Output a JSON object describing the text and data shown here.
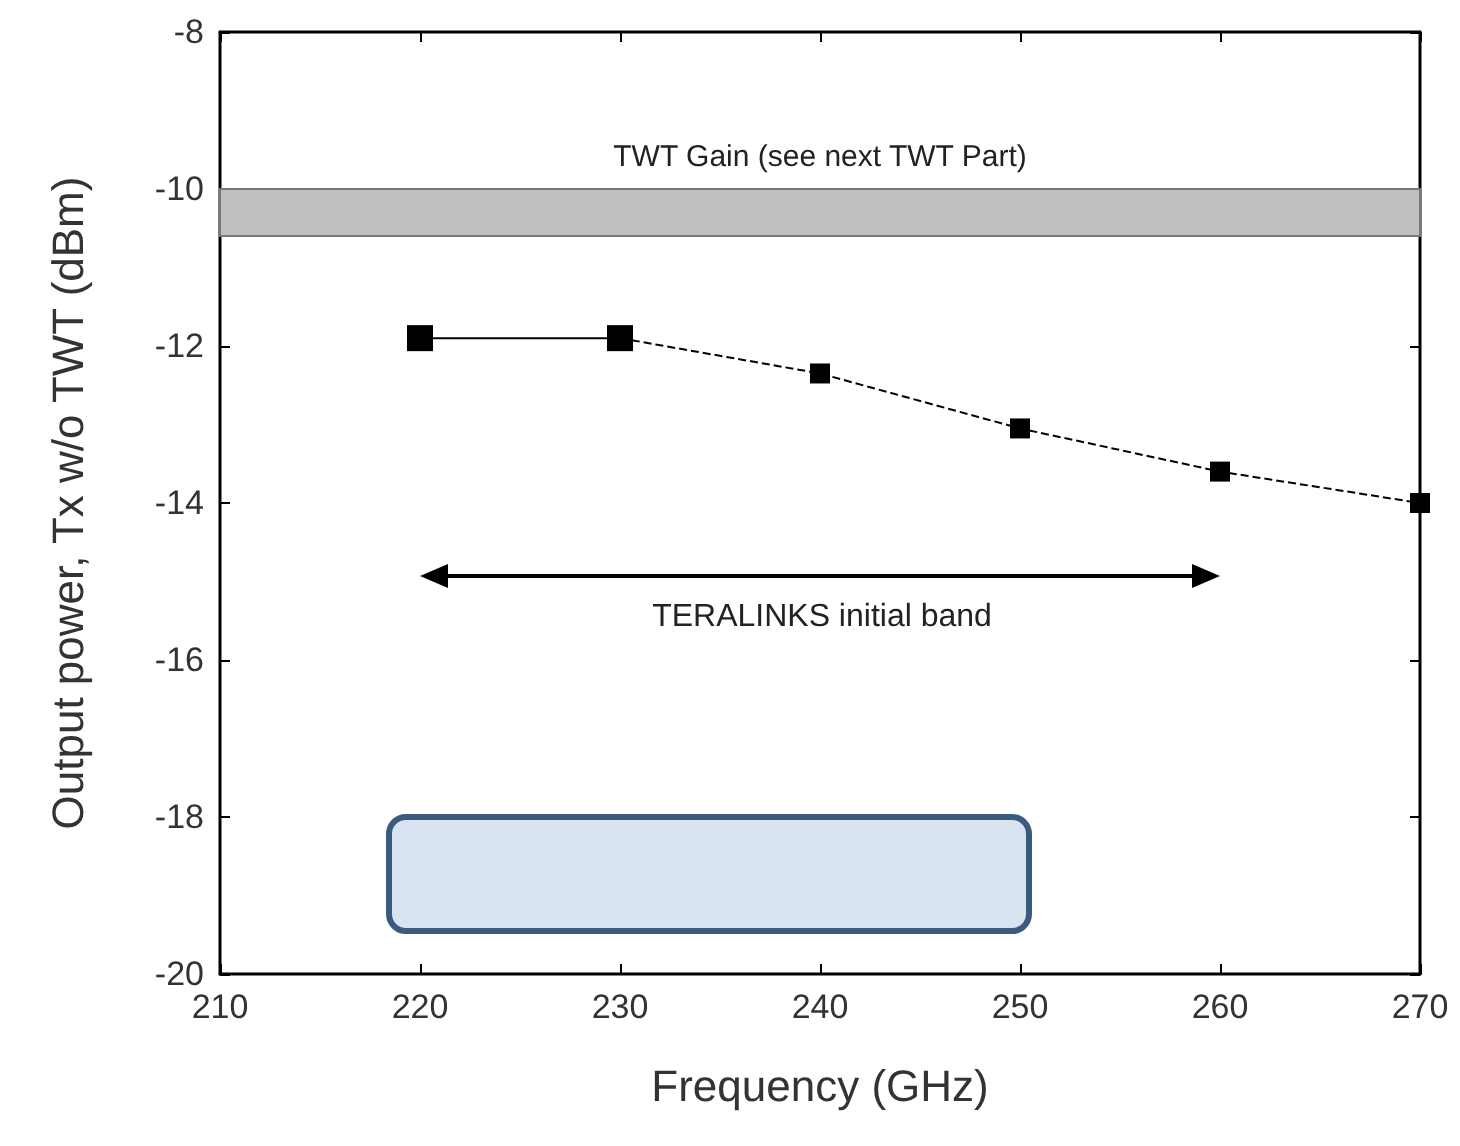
{
  "chart_data": {
    "type": "line",
    "xlabel": "Frequency (GHz)",
    "ylabel": "Output power, Tx w/o TWT (dBm)",
    "xlim": [
      210,
      270
    ],
    "xticks": [
      210,
      220,
      230,
      240,
      250,
      260,
      270
    ],
    "ylim": [
      -20,
      -8
    ],
    "yticks": [
      -20,
      -18,
      -16,
      -14,
      -12,
      -10,
      -8
    ],
    "series": [
      {
        "color": "#000000",
        "x": [
          220,
          230
        ],
        "values": [
          -11.9,
          -11.9
        ],
        "line_style": "solid"
      },
      {
        "color": "#000000",
        "x": [
          230,
          240,
          250,
          260,
          270
        ],
        "values": [
          -11.9,
          -12.35,
          -13.05,
          -13.6,
          -14.0
        ],
        "line_style": "dashed"
      }
    ],
    "marker": "square",
    "grid": false,
    "bands": [
      {
        "axis": "y",
        "from": -10.6,
        "to": -10,
        "label": "TWT Gain (see next TWT Part)",
        "color": "#c0c0c0"
      }
    ],
    "annotations": [
      "TERALINKS initial band"
    ]
  }
}
